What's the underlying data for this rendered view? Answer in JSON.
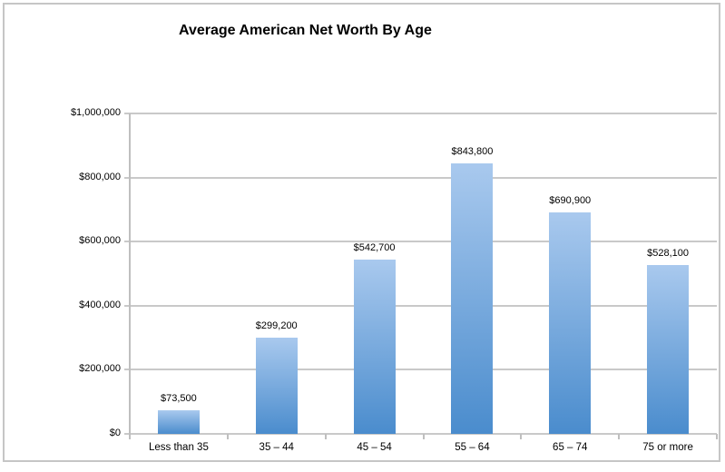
{
  "window": {
    "background_color": "#ffffff",
    "border_color": "#c6c6c6"
  },
  "chart_data": {
    "type": "bar",
    "title": "Average American Net Worth By Age",
    "categories": [
      "Less than 35",
      "35 – 44",
      "45 – 54",
      "55 – 64",
      "65 – 74",
      "75 or more"
    ],
    "values": [
      73500,
      299200,
      542700,
      843800,
      690900,
      528100
    ],
    "data_labels": [
      "$73,500",
      "$299,200",
      "$542,700",
      "$843,800",
      "$690,900",
      "$528,100"
    ],
    "xlabel": "",
    "ylabel": "",
    "ylim": [
      0,
      1000000
    ],
    "y_ticks": [
      0,
      200000,
      400000,
      600000,
      800000,
      1000000
    ],
    "y_tick_labels": [
      "$0",
      "$200,000",
      "$400,000",
      "$600,000",
      "$800,000",
      "$1,000,000"
    ],
    "grid": true,
    "legend": "none",
    "colors": {
      "bar_gradient_top": "#a9c9ee",
      "bar_gradient_bottom": "#4a8ccd",
      "gridline": "#c9c9c9",
      "axis": "#bfbfbf",
      "text": "#000000"
    }
  }
}
